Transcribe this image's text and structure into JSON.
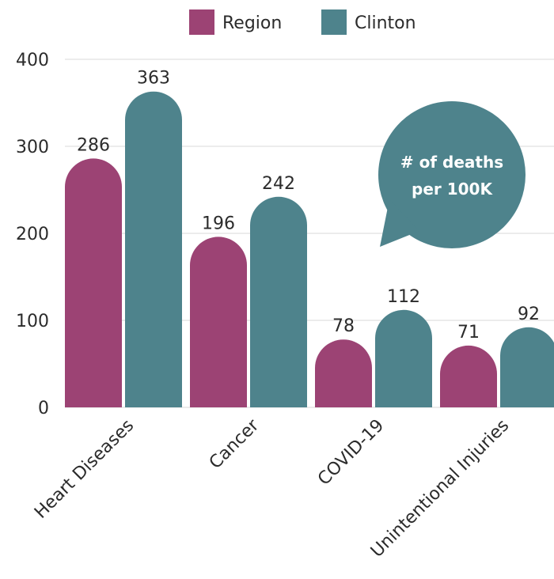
{
  "chart_data": {
    "type": "bar",
    "categories": [
      "Heart Diseases",
      "Cancer",
      "COVID-19",
      "Unintentional Injuries"
    ],
    "series": [
      {
        "name": "Region",
        "values": [
          286,
          196,
          78,
          71
        ],
        "color": "#9c4374"
      },
      {
        "name": "Clinton",
        "values": [
          363,
          242,
          112,
          92
        ],
        "color": "#4e838c"
      }
    ],
    "title": "",
    "xlabel": "",
    "ylabel": "",
    "ylim": [
      0,
      400
    ],
    "yticks": [
      0,
      100,
      200,
      300,
      400
    ],
    "grid": true,
    "legend_position": "top-center",
    "annotation": {
      "lines": [
        "# of deaths",
        "per 100K"
      ],
      "color": "#4e838c"
    }
  }
}
